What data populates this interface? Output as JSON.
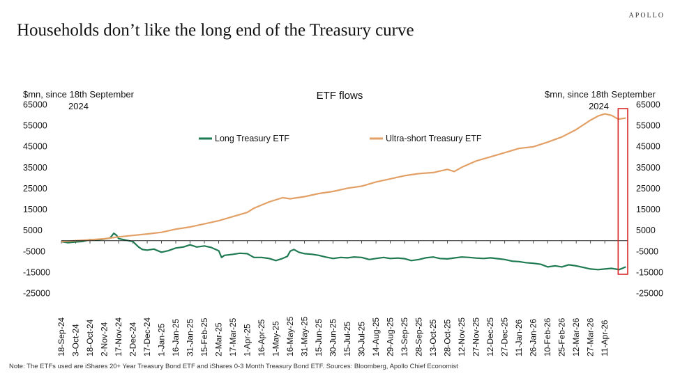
{
  "brand": "APOLLO",
  "headline": "Households don’t like the long end of the Treasury curve",
  "note": "Note: The ETFs used are iShares 20+ Year Treasury Bond ETF and iShares 0-3 Month Treasury Bond ETF. Sources: Bloomberg, Apollo Chief Economist",
  "colors": {
    "long": "#1f7a52",
    "ultra": "#e3a066",
    "highlight": "#d62828",
    "axis": "#222222"
  },
  "chart_data": {
    "type": "line",
    "title": "ETF flows",
    "ylabel_left": [
      "$mn, since 18th September",
      "2024"
    ],
    "ylabel_right": [
      "$mn, since 18th September",
      "2024"
    ],
    "ylim": [
      -25000,
      65000
    ],
    "yticks": [
      65000,
      55000,
      45000,
      35000,
      25000,
      15000,
      5000,
      -5000,
      -15000,
      -25000
    ],
    "x_start": "2024-09-18",
    "x_end": "2026-05-05",
    "xtick_labels": [
      "18-Sep-24",
      "3-Oct-24",
      "18-Oct-24",
      "2-Nov-24",
      "17-Nov-24",
      "2-Dec-24",
      "17-Dec-24",
      "1-Jan-25",
      "16-Jan-25",
      "31-Jan-25",
      "15-Feb-25",
      "2-Mar-25",
      "17-Mar-25",
      "1-Apr-25",
      "16-Apr-25",
      "1-May-25",
      "16-May-25",
      "31-May-25",
      "15-Jun-25",
      "30-Jun-25",
      "15-Jul-25",
      "30-Jul-25",
      "14-Aug-25",
      "29-Aug-25",
      "13-Sep-25",
      "28-Sep-25",
      "13-Oct-25",
      "28-Oct-25",
      "12-Nov-25",
      "27-Nov-25",
      "12-Dec-25",
      "27-Dec-25",
      "11-Jan-26",
      "26-Jan-26",
      "10-Feb-26",
      "25-Feb-26",
      "12-Mar-26",
      "27-Mar-26",
      "11-Apr-26"
    ],
    "xtick_dates": [
      "2024-09-18",
      "2024-10-03",
      "2024-10-18",
      "2024-11-02",
      "2024-11-17",
      "2024-12-02",
      "2024-12-17",
      "2025-01-01",
      "2025-01-16",
      "2025-01-31",
      "2025-02-15",
      "2025-03-02",
      "2025-03-17",
      "2025-04-01",
      "2025-04-16",
      "2025-05-01",
      "2025-05-16",
      "2025-05-31",
      "2025-06-15",
      "2025-06-30",
      "2025-07-15",
      "2025-07-30",
      "2025-08-14",
      "2025-08-29",
      "2025-09-13",
      "2025-09-28",
      "2025-10-13",
      "2025-10-28",
      "2025-11-12",
      "2025-11-27",
      "2025-12-12",
      "2025-12-27",
      "2026-01-11",
      "2026-01-26",
      "2026-02-10",
      "2026-02-25",
      "2026-03-12",
      "2026-03-27",
      "2026-04-11"
    ],
    "legend_placement": "top-center",
    "grid": false,
    "highlight_range": [
      "2026-04-25",
      "2026-05-05"
    ],
    "series": [
      {
        "name": "Long Treasury ETF",
        "points": [
          [
            "2024-09-18",
            -500
          ],
          [
            "2024-09-25",
            -1000
          ],
          [
            "2024-10-03",
            -600
          ],
          [
            "2024-10-10",
            -400
          ],
          [
            "2024-10-18",
            500
          ],
          [
            "2024-10-25",
            300
          ],
          [
            "2024-11-02",
            800
          ],
          [
            "2024-11-08",
            1200
          ],
          [
            "2024-11-12",
            3500
          ],
          [
            "2024-11-15",
            2500
          ],
          [
            "2024-11-17",
            1000
          ],
          [
            "2024-11-25",
            200
          ],
          [
            "2024-12-02",
            -400
          ],
          [
            "2024-12-08",
            -3000
          ],
          [
            "2024-12-12",
            -4200
          ],
          [
            "2024-12-17",
            -4500
          ],
          [
            "2024-12-24",
            -4000
          ],
          [
            "2025-01-01",
            -5500
          ],
          [
            "2025-01-08",
            -4800
          ],
          [
            "2025-01-16",
            -3500
          ],
          [
            "2025-01-24",
            -3000
          ],
          [
            "2025-01-31",
            -2000
          ],
          [
            "2025-02-07",
            -3000
          ],
          [
            "2025-02-15",
            -2500
          ],
          [
            "2025-02-22",
            -3200
          ],
          [
            "2025-03-02",
            -4800
          ],
          [
            "2025-03-05",
            -8000
          ],
          [
            "2025-03-08",
            -7000
          ],
          [
            "2025-03-17",
            -6500
          ],
          [
            "2025-03-24",
            -6000
          ],
          [
            "2025-04-01",
            -6200
          ],
          [
            "2025-04-08",
            -8000
          ],
          [
            "2025-04-16",
            -8000
          ],
          [
            "2025-04-24",
            -8500
          ],
          [
            "2025-05-01",
            -9500
          ],
          [
            "2025-05-08",
            -8500
          ],
          [
            "2025-05-13",
            -7500
          ],
          [
            "2025-05-16",
            -5000
          ],
          [
            "2025-05-20",
            -4200
          ],
          [
            "2025-05-25",
            -5500
          ],
          [
            "2025-05-31",
            -6200
          ],
          [
            "2025-06-08",
            -6500
          ],
          [
            "2025-06-15",
            -7000
          ],
          [
            "2025-06-22",
            -7800
          ],
          [
            "2025-06-30",
            -8500
          ],
          [
            "2025-07-08",
            -8000
          ],
          [
            "2025-07-15",
            -8200
          ],
          [
            "2025-07-22",
            -7800
          ],
          [
            "2025-07-30",
            -8000
          ],
          [
            "2025-08-07",
            -9000
          ],
          [
            "2025-08-14",
            -8500
          ],
          [
            "2025-08-22",
            -8000
          ],
          [
            "2025-08-29",
            -8500
          ],
          [
            "2025-09-06",
            -8300
          ],
          [
            "2025-09-13",
            -8600
          ],
          [
            "2025-09-20",
            -9500
          ],
          [
            "2025-09-28",
            -9000
          ],
          [
            "2025-10-05",
            -8200
          ],
          [
            "2025-10-13",
            -7800
          ],
          [
            "2025-10-20",
            -8500
          ],
          [
            "2025-10-28",
            -8700
          ],
          [
            "2025-11-05",
            -8200
          ],
          [
            "2025-11-12",
            -7800
          ],
          [
            "2025-11-20",
            -8000
          ],
          [
            "2025-11-27",
            -8300
          ],
          [
            "2025-12-05",
            -8500
          ],
          [
            "2025-12-12",
            -8200
          ],
          [
            "2025-12-20",
            -8600
          ],
          [
            "2025-12-27",
            -9000
          ],
          [
            "2026-01-04",
            -9800
          ],
          [
            "2026-01-11",
            -10000
          ],
          [
            "2026-01-18",
            -10500
          ],
          [
            "2026-01-26",
            -10800
          ],
          [
            "2026-02-03",
            -11300
          ],
          [
            "2026-02-10",
            -12500
          ],
          [
            "2026-02-18",
            -12000
          ],
          [
            "2026-02-25",
            -12500
          ],
          [
            "2026-03-04",
            -11500
          ],
          [
            "2026-03-12",
            -12000
          ],
          [
            "2026-03-20",
            -12800
          ],
          [
            "2026-03-27",
            -13500
          ],
          [
            "2026-04-04",
            -13800
          ],
          [
            "2026-04-11",
            -13500
          ],
          [
            "2026-04-18",
            -13200
          ],
          [
            "2026-04-26",
            -13800
          ],
          [
            "2026-05-03",
            -12500
          ]
        ]
      },
      {
        "name": "Ultra-short Treasury ETF",
        "points": [
          [
            "2024-09-18",
            -500
          ],
          [
            "2024-10-03",
            0
          ],
          [
            "2024-10-18",
            400
          ],
          [
            "2024-11-02",
            900
          ],
          [
            "2024-11-17",
            1800
          ],
          [
            "2024-12-02",
            2500
          ],
          [
            "2024-12-17",
            3200
          ],
          [
            "2025-01-01",
            4000
          ],
          [
            "2025-01-16",
            5500
          ],
          [
            "2025-01-31",
            6500
          ],
          [
            "2025-02-15",
            8000
          ],
          [
            "2025-03-02",
            9500
          ],
          [
            "2025-03-17",
            11500
          ],
          [
            "2025-04-01",
            13500
          ],
          [
            "2025-04-08",
            15500
          ],
          [
            "2025-04-16",
            17000
          ],
          [
            "2025-04-24",
            18500
          ],
          [
            "2025-05-01",
            19500
          ],
          [
            "2025-05-08",
            20500
          ],
          [
            "2025-05-16",
            20000
          ],
          [
            "2025-05-31",
            21000
          ],
          [
            "2025-06-15",
            22500
          ],
          [
            "2025-06-30",
            23500
          ],
          [
            "2025-07-15",
            25000
          ],
          [
            "2025-07-30",
            26000
          ],
          [
            "2025-08-14",
            28000
          ],
          [
            "2025-08-29",
            29500
          ],
          [
            "2025-09-13",
            31000
          ],
          [
            "2025-09-28",
            32000
          ],
          [
            "2025-10-13",
            32500
          ],
          [
            "2025-10-28",
            34000
          ],
          [
            "2025-11-04",
            33000
          ],
          [
            "2025-11-12",
            35000
          ],
          [
            "2025-11-27",
            38000
          ],
          [
            "2025-12-12",
            40000
          ],
          [
            "2025-12-27",
            42000
          ],
          [
            "2026-01-11",
            44000
          ],
          [
            "2026-01-26",
            44800
          ],
          [
            "2026-02-10",
            47000
          ],
          [
            "2026-02-25",
            49500
          ],
          [
            "2026-03-12",
            53000
          ],
          [
            "2026-03-27",
            57500
          ],
          [
            "2026-04-04",
            59500
          ],
          [
            "2026-04-11",
            60500
          ],
          [
            "2026-04-18",
            59800
          ],
          [
            "2026-04-25",
            58000
          ],
          [
            "2026-05-03",
            58500
          ]
        ]
      }
    ]
  }
}
